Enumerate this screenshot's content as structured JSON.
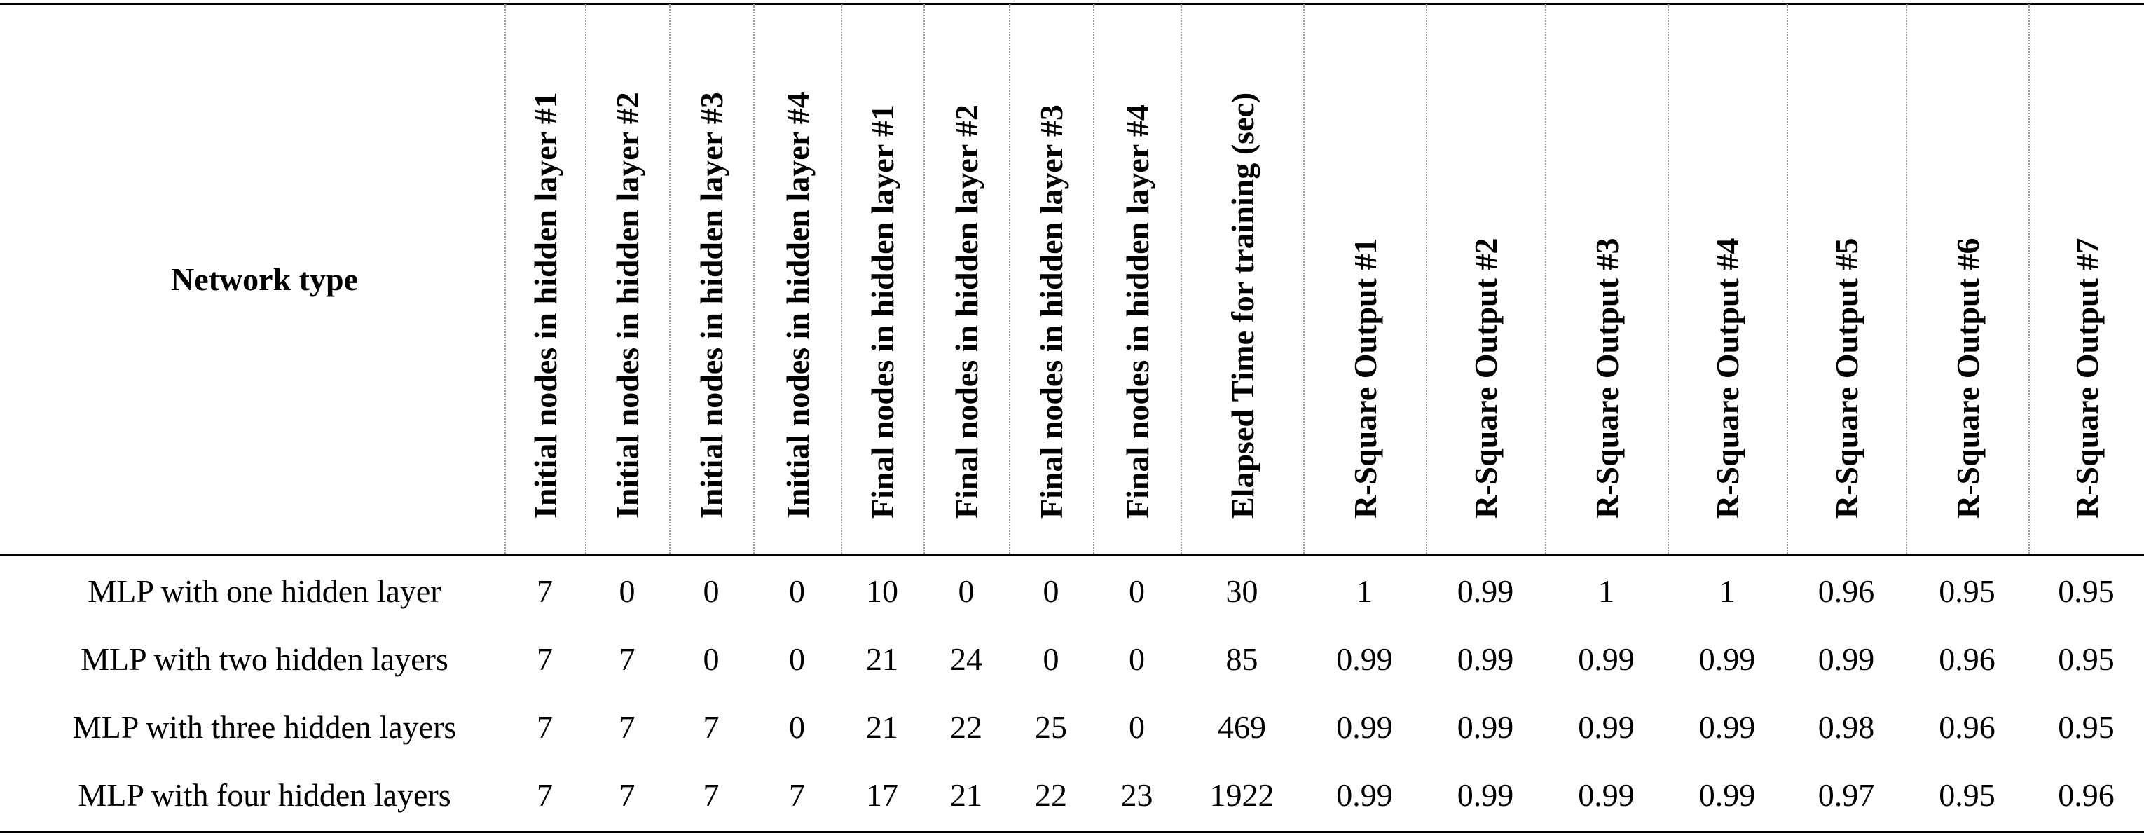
{
  "table": {
    "header": {
      "network_type": "Network type",
      "columns": [
        "Initial nodes in hidden layer #1",
        "Initial nodes in hidden layer #2",
        "Initial nodes in hidden layer #3",
        "Initial nodes in hidden layer #4",
        "Final nodes in hidden layer #1",
        "Final nodes in hidden layer #2",
        "Final nodes in hidden layer #3",
        "Final nodes in hidden layer #4",
        "Elapsed Time for training (sec)",
        "R-Square Output #1",
        "R-Square Output #2",
        "R-Square Output #3",
        "R-Square Output #4",
        "R-Square Output #5",
        "R-Square Output #6",
        "R-Square Output #7"
      ]
    },
    "rows": [
      {
        "name": "MLP with one hidden layer",
        "values": [
          "7",
          "0",
          "0",
          "0",
          "10",
          "0",
          "0",
          "0",
          "30",
          "1",
          "0.99",
          "1",
          "1",
          "0.96",
          "0.95",
          "0.95"
        ]
      },
      {
        "name": "MLP with two hidden layers",
        "values": [
          "7",
          "7",
          "0",
          "0",
          "21",
          "24",
          "0",
          "0",
          "85",
          "0.99",
          "0.99",
          "0.99",
          "0.99",
          "0.99",
          "0.96",
          "0.95"
        ]
      },
      {
        "name": "MLP with three hidden layers",
        "values": [
          "7",
          "7",
          "7",
          "0",
          "21",
          "22",
          "25",
          "0",
          "469",
          "0.99",
          "0.99",
          "0.99",
          "0.99",
          "0.98",
          "0.96",
          "0.95"
        ]
      },
      {
        "name": "MLP with four hidden layers",
        "values": [
          "7",
          "7",
          "7",
          "7",
          "17",
          "21",
          "22",
          "23",
          "1922",
          "0.99",
          "0.99",
          "0.99",
          "0.99",
          "0.97",
          "0.95",
          "0.96"
        ]
      }
    ]
  }
}
